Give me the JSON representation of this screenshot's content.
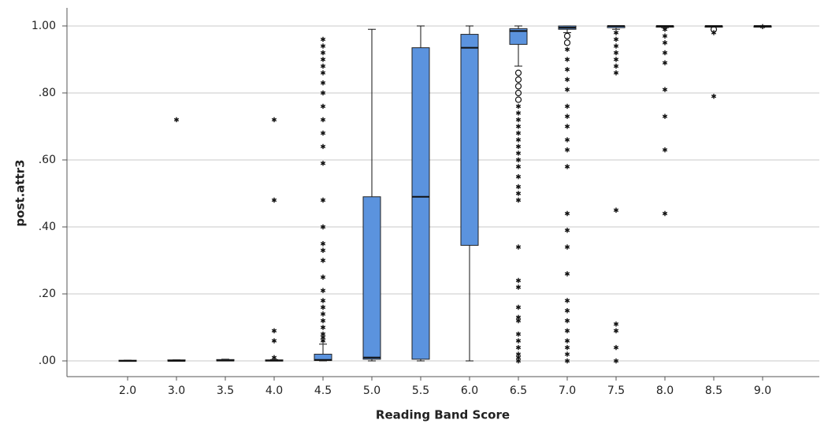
{
  "chart_data": {
    "type": "boxplot",
    "xlabel": "Reading Band Score",
    "ylabel": "post.attr3",
    "color": "#5b93de",
    "ylim": [
      -0.047,
      1.054
    ],
    "yticks": [
      {
        "value": 0,
        "label": ".00"
      },
      {
        "value": 0.2,
        "label": ".20"
      },
      {
        "value": 0.4,
        "label": ".40"
      },
      {
        "value": 0.6,
        "label": ".60"
      },
      {
        "value": 0.8,
        "label": ".80"
      },
      {
        "value": 1,
        "label": "1.00"
      }
    ],
    "grid": true,
    "categories": [
      "2.0",
      "3.0",
      "3.5",
      "4.0",
      "4.5",
      "5.0",
      "5.5",
      "6.0",
      "6.5",
      "7.0",
      "7.5",
      "8.0",
      "8.5",
      "9.0"
    ],
    "boxes": [
      {
        "min": 0,
        "q1": 0,
        "median": 0,
        "q3": 0.002,
        "max": 0.002,
        "outliers": [],
        "extremes": []
      },
      {
        "min": 0,
        "q1": 0,
        "median": 0,
        "q3": 0.003,
        "max": 0.003,
        "outliers": [],
        "extremes": [
          0.72
        ]
      },
      {
        "min": 0,
        "q1": 0,
        "median": 0.001,
        "q3": 0.004,
        "max": 0.005,
        "outliers": [],
        "extremes": []
      },
      {
        "min": 0,
        "q1": 0,
        "median": 0.001,
        "q3": 0.003,
        "max": 0.004,
        "outliers": [],
        "extremes": [
          0.01,
          0.06,
          0.09,
          0.48,
          0.72
        ]
      },
      {
        "min": 0,
        "q1": 0.001,
        "median": 0.003,
        "q3": 0.02,
        "max": 0.05,
        "outliers": [],
        "extremes": [
          0.06,
          0.07,
          0.08,
          0.1,
          0.12,
          0.14,
          0.16,
          0.18,
          0.21,
          0.25,
          0.3,
          0.33,
          0.35,
          0.4,
          0.48,
          0.59,
          0.64,
          0.68,
          0.72,
          0.76,
          0.8,
          0.83,
          0.86,
          0.88,
          0.9,
          0.92,
          0.94,
          0.96
        ]
      },
      {
        "min": 0,
        "q1": 0.005,
        "median": 0.01,
        "q3": 0.49,
        "max": 0.99,
        "outliers": [],
        "extremes": []
      },
      {
        "min": 0,
        "q1": 0.005,
        "median": 0.49,
        "q3": 0.935,
        "max": 1,
        "outliers": [],
        "extremes": []
      },
      {
        "min": 0,
        "q1": 0.345,
        "median": 0.935,
        "q3": 0.975,
        "max": 1,
        "outliers": [],
        "extremes": []
      },
      {
        "min": 0.88,
        "q1": 0.945,
        "median": 0.985,
        "q3": 0.992,
        "max": 1,
        "outliers": [
          0.78,
          0.8,
          0.82,
          0.84,
          0.86
        ],
        "extremes": [
          0,
          0.01,
          0.02,
          0.04,
          0.06,
          0.08,
          0.12,
          0.13,
          0.16,
          0.22,
          0.24,
          0.34,
          0.48,
          0.5,
          0.52,
          0.55,
          0.58,
          0.6,
          0.62,
          0.64,
          0.66,
          0.68,
          0.7,
          0.72,
          0.74,
          0.76
        ]
      },
      {
        "min": 0.98,
        "q1": 0.99,
        "median": 0.995,
        "q3": 1,
        "max": 1,
        "outliers": [
          0.95,
          0.97
        ],
        "extremes": [
          0,
          0.02,
          0.04,
          0.06,
          0.09,
          0.12,
          0.15,
          0.18,
          0.26,
          0.34,
          0.39,
          0.44,
          0.58,
          0.63,
          0.66,
          0.7,
          0.73,
          0.76,
          0.81,
          0.84,
          0.87,
          0.9,
          0.93
        ]
      },
      {
        "min": 0.99,
        "q1": 0.995,
        "median": 1,
        "q3": 1,
        "max": 1,
        "outliers": [],
        "extremes": [
          0,
          0.04,
          0.09,
          0.11,
          0.45,
          0.86,
          0.88,
          0.9,
          0.92,
          0.94,
          0.96,
          0.98
        ]
      },
      {
        "min": 0.995,
        "q1": 0.998,
        "median": 1,
        "q3": 1,
        "max": 1,
        "outliers": [],
        "extremes": [
          0.44,
          0.63,
          0.73,
          0.81,
          0.89,
          0.92,
          0.95,
          0.97,
          0.99
        ]
      },
      {
        "min": 1,
        "q1": 1,
        "median": 1,
        "q3": 1,
        "max": 1,
        "outliers": [
          0.99
        ],
        "extremes": [
          0.79,
          0.98
        ]
      },
      {
        "min": 0.998,
        "q1": 0.999,
        "median": 1,
        "q3": 1,
        "max": 1,
        "outliers": [],
        "extremes": [
          0.998
        ]
      }
    ]
  }
}
